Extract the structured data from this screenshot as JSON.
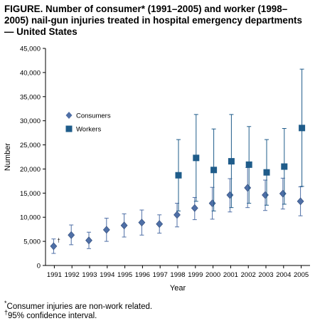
{
  "chart_data": {
    "type": "scatter",
    "title": "FIGURE. Number of consumer* (1991–2005) and worker (1998–2005) nail-gun injuries treated in hospital emergency departments — United States",
    "xlabel": "Year",
    "ylabel": "Number",
    "x_ticks": [
      "1991",
      "1992",
      "1993",
      "1994",
      "1995",
      "1996",
      "1997",
      "1998",
      "1999",
      "2000",
      "2001",
      "2002",
      "2003",
      "2004",
      "2005"
    ],
    "y_ticks": [
      "0",
      "5,000",
      "10,000",
      "15,000",
      "20,000",
      "25,000",
      "30,000",
      "35,000",
      "40,000",
      "45,000"
    ],
    "ylim": [
      0,
      45000
    ],
    "legend_position": "upper-left",
    "grid": false,
    "series": [
      {
        "name": "Consumers",
        "marker": "diamond",
        "color": "#4f6fa6",
        "points": [
          {
            "x": "1991",
            "y": 4000,
            "lo": 2500,
            "hi": 5500
          },
          {
            "x": "1992",
            "y": 6300,
            "lo": 4300,
            "hi": 8400
          },
          {
            "x": "1993",
            "y": 5200,
            "lo": 3500,
            "hi": 6900
          },
          {
            "x": "1994",
            "y": 7400,
            "lo": 5000,
            "hi": 9800
          },
          {
            "x": "1995",
            "y": 8300,
            "lo": 5900,
            "hi": 10700
          },
          {
            "x": "1996",
            "y": 8900,
            "lo": 6300,
            "hi": 11500
          },
          {
            "x": "1997",
            "y": 8600,
            "lo": 6700,
            "hi": 10500
          },
          {
            "x": "1998",
            "y": 10500,
            "lo": 8000,
            "hi": 12900
          },
          {
            "x": "1999",
            "y": 11900,
            "lo": 9500,
            "hi": 14100
          },
          {
            "x": "2000",
            "y": 12900,
            "lo": 9600,
            "hi": 16200
          },
          {
            "x": "2001",
            "y": 14600,
            "lo": 11100,
            "hi": 18000
          },
          {
            "x": "2002",
            "y": 16100,
            "lo": 12000,
            "hi": 20300
          },
          {
            "x": "2003",
            "y": 14600,
            "lo": 11400,
            "hi": 17700
          },
          {
            "x": "2004",
            "y": 14900,
            "lo": 11700,
            "hi": 18100
          },
          {
            "x": "2005",
            "y": 13300,
            "lo": 10300,
            "hi": 16300
          }
        ]
      },
      {
        "name": "Workers",
        "marker": "square",
        "color": "#1f5c8a",
        "points": [
          {
            "x": "1998",
            "y": 18700,
            "lo": 11300,
            "hi": 26100
          },
          {
            "x": "1999",
            "y": 22300,
            "lo": 13300,
            "hi": 31300
          },
          {
            "x": "2000",
            "y": 19800,
            "lo": 11300,
            "hi": 28300
          },
          {
            "x": "2001",
            "y": 21600,
            "lo": 12000,
            "hi": 31300
          },
          {
            "x": "2002",
            "y": 20900,
            "lo": 12900,
            "hi": 28800
          },
          {
            "x": "2003",
            "y": 19300,
            "lo": 12500,
            "hi": 26100
          },
          {
            "x": "2004",
            "y": 20500,
            "lo": 12700,
            "hi": 28400
          },
          {
            "x": "2005",
            "y": 28500,
            "lo": 16400,
            "hi": 40700
          }
        ]
      }
    ],
    "annotation": "†"
  },
  "footnotes": {
    "consumer_mark": "*",
    "consumer_text": "Consumer injuries are non-work related.",
    "ci_mark": "†",
    "ci_text": "95% confidence interval."
  }
}
